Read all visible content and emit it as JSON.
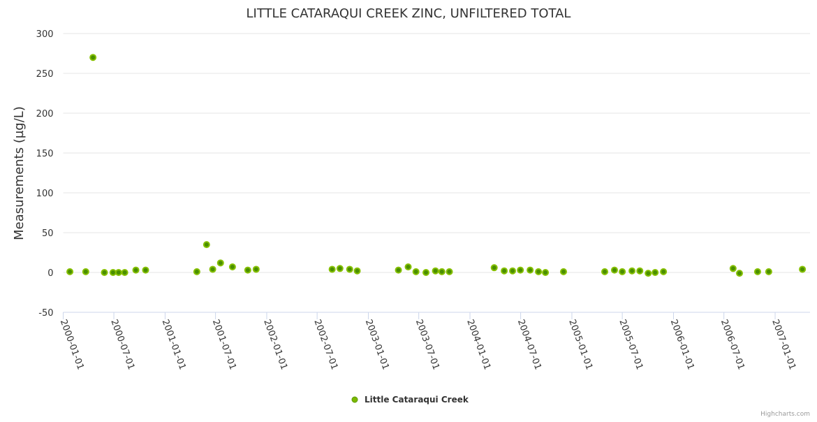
{
  "chart_data": {
    "type": "scatter",
    "title": "LITTLE CATARAQUI CREEK ZINC, UNFILTERED TOTAL",
    "xlabel": "",
    "ylabel": "Measurements (µg/L)",
    "ylim": [
      -50,
      300
    ],
    "yticks": [
      -50,
      0,
      50,
      100,
      150,
      200,
      250,
      300
    ],
    "xlim": [
      "2000-01-01",
      "2007-05-15"
    ],
    "xticks": [
      "2000-01-01",
      "2000-07-01",
      "2001-01-01",
      "2001-07-01",
      "2002-01-01",
      "2002-07-01",
      "2003-01-01",
      "2003-07-01",
      "2004-01-01",
      "2004-07-01",
      "2005-01-01",
      "2005-07-01",
      "2006-01-01",
      "2006-07-01",
      "2007-01-01"
    ],
    "grid": true,
    "legend_position": "bottom-center",
    "series": [
      {
        "name": "Little Cataraqui Creek",
        "color": "#7cb800",
        "points": [
          [
            "2000-01-25",
            1
          ],
          [
            "2000-03-22",
            1
          ],
          [
            "2000-04-17",
            270
          ],
          [
            "2000-05-28",
            0
          ],
          [
            "2000-06-28",
            0
          ],
          [
            "2000-07-18",
            0
          ],
          [
            "2000-08-09",
            0
          ],
          [
            "2000-09-18",
            3
          ],
          [
            "2000-10-23",
            3
          ],
          [
            "2001-04-25",
            1
          ],
          [
            "2001-05-30",
            35
          ],
          [
            "2001-06-21",
            4
          ],
          [
            "2001-07-19",
            12
          ],
          [
            "2001-08-31",
            7
          ],
          [
            "2001-10-25",
            3
          ],
          [
            "2001-11-24",
            4
          ],
          [
            "2002-08-24",
            4
          ],
          [
            "2002-09-21",
            5
          ],
          [
            "2002-10-26",
            4
          ],
          [
            "2002-11-22",
            2
          ],
          [
            "2003-04-19",
            3
          ],
          [
            "2003-05-24",
            7
          ],
          [
            "2003-06-21",
            1
          ],
          [
            "2003-07-27",
            0
          ],
          [
            "2003-08-30",
            2
          ],
          [
            "2003-09-22",
            1
          ],
          [
            "2003-10-19",
            1
          ],
          [
            "2004-03-28",
            6
          ],
          [
            "2004-05-03",
            2
          ],
          [
            "2004-06-02",
            2
          ],
          [
            "2004-06-30",
            3
          ],
          [
            "2004-08-04",
            3
          ],
          [
            "2004-09-03",
            1
          ],
          [
            "2004-09-28",
            0
          ],
          [
            "2004-12-02",
            1
          ],
          [
            "2005-04-29",
            1
          ],
          [
            "2005-06-03",
            3
          ],
          [
            "2005-07-01",
            1
          ],
          [
            "2005-08-05",
            2
          ],
          [
            "2005-09-02",
            2
          ],
          [
            "2005-10-02",
            -1
          ],
          [
            "2005-10-27",
            0
          ],
          [
            "2005-11-26",
            1
          ],
          [
            "2006-08-03",
            5
          ],
          [
            "2006-08-26",
            -1
          ],
          [
            "2006-10-30",
            1
          ],
          [
            "2006-12-09",
            1
          ],
          [
            "2007-04-09",
            4
          ]
        ]
      }
    ]
  },
  "credits": "Highcharts.com"
}
